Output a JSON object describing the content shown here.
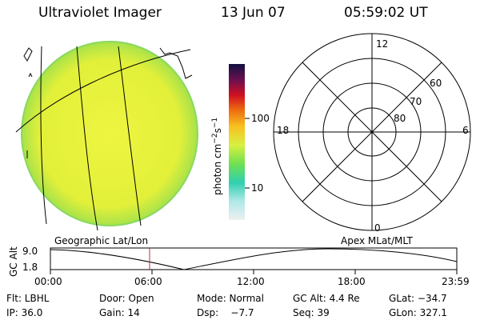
{
  "header": {
    "instrument": "Ultraviolet Imager",
    "date": "13 Jun 07",
    "time": "05:59:02 UT"
  },
  "colorbar": {
    "unit_label": "photon cm",
    "unit_sup1": "−2",
    "unit_mid": "s",
    "unit_sup2": "−1",
    "ticks": [
      "100",
      "10"
    ]
  },
  "polar": {
    "clock_labels": [
      "12",
      "18",
      "6",
      "0"
    ],
    "lat_labels": [
      "60",
      "70",
      "80"
    ]
  },
  "timeline": {
    "left_label": "Geographic Lat/Lon",
    "right_label": "Apex MLat/MLT",
    "axis_title": "GC Alt",
    "y_ticks": [
      "9.0",
      "1.8"
    ],
    "x_ticks": [
      "00:00",
      "06:00",
      "12:00",
      "18:00",
      "23:59"
    ]
  },
  "footer": {
    "rows": [
      [
        "Flt: LBHL",
        "Door: Open",
        "Mode: Normal",
        "GC Alt: 4.4 Re",
        "GLat: −34.7"
      ],
      [
        "IP: 36.0",
        "Gain: 14",
        "Dsp:    −7.7",
        "Seq: 39",
        "GLon: 327.1"
      ]
    ]
  },
  "colors": {
    "disk": "#e6f23a",
    "disk_edge": "#88d860",
    "marker": "#b0303a"
  }
}
